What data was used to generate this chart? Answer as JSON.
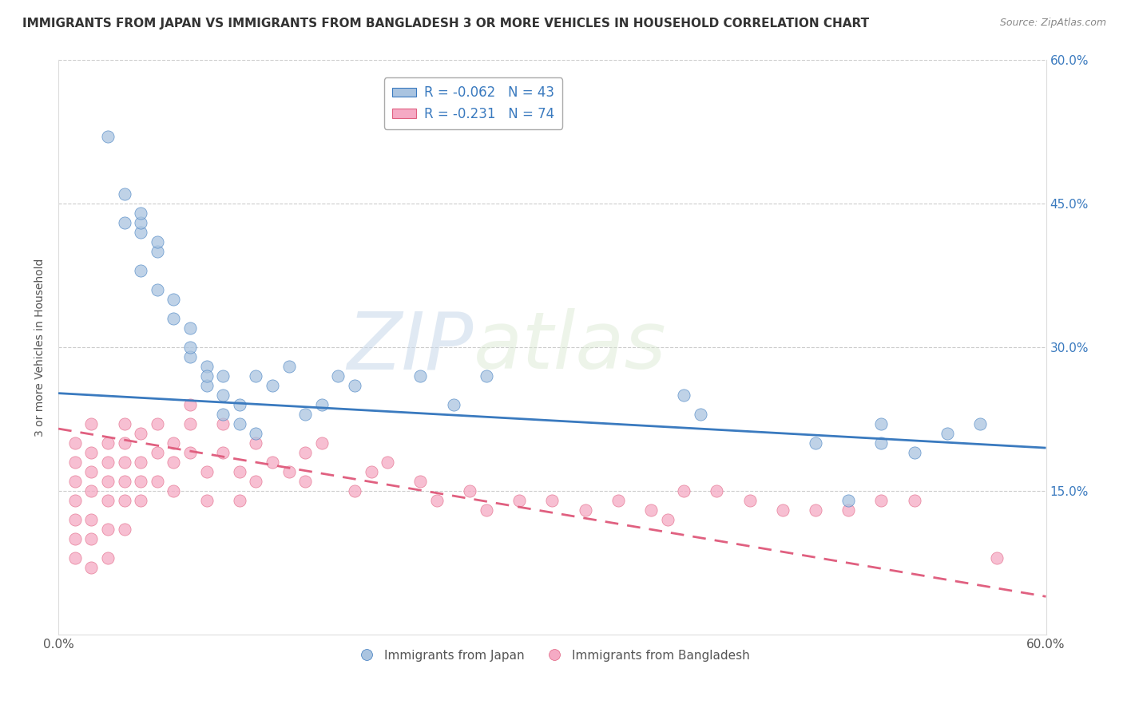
{
  "title": "IMMIGRANTS FROM JAPAN VS IMMIGRANTS FROM BANGLADESH 3 OR MORE VEHICLES IN HOUSEHOLD CORRELATION CHART",
  "source": "Source: ZipAtlas.com",
  "ylabel": "3 or more Vehicles in Household",
  "xlim": [
    0.0,
    0.6
  ],
  "ylim": [
    0.0,
    0.6
  ],
  "legend_japan_R": "R = -0.062",
  "legend_japan_N": "N = 43",
  "legend_bangladesh_R": "R = -0.231",
  "legend_bangladesh_N": "N = 74",
  "japan_color": "#aac4e0",
  "bangladesh_color": "#f5aac4",
  "japan_line_color": "#3a7abf",
  "bangladesh_line_color": "#e06080",
  "watermark_zip": "ZIP",
  "watermark_atlas": "atlas",
  "japan_x": [
    0.03,
    0.04,
    0.04,
    0.05,
    0.05,
    0.05,
    0.05,
    0.06,
    0.06,
    0.06,
    0.07,
    0.07,
    0.08,
    0.08,
    0.08,
    0.09,
    0.09,
    0.09,
    0.1,
    0.1,
    0.1,
    0.11,
    0.11,
    0.12,
    0.12,
    0.13,
    0.14,
    0.15,
    0.16,
    0.17,
    0.18,
    0.22,
    0.24,
    0.26,
    0.38,
    0.39,
    0.46,
    0.48,
    0.5,
    0.5,
    0.52,
    0.54,
    0.56
  ],
  "japan_y": [
    0.52,
    0.43,
    0.46,
    0.38,
    0.42,
    0.43,
    0.44,
    0.36,
    0.4,
    0.41,
    0.33,
    0.35,
    0.29,
    0.3,
    0.32,
    0.26,
    0.28,
    0.27,
    0.23,
    0.25,
    0.27,
    0.22,
    0.24,
    0.21,
    0.27,
    0.26,
    0.28,
    0.23,
    0.24,
    0.27,
    0.26,
    0.27,
    0.24,
    0.27,
    0.25,
    0.23,
    0.2,
    0.14,
    0.22,
    0.2,
    0.19,
    0.21,
    0.22
  ],
  "bangladesh_x": [
    0.01,
    0.01,
    0.01,
    0.01,
    0.01,
    0.01,
    0.01,
    0.02,
    0.02,
    0.02,
    0.02,
    0.02,
    0.02,
    0.02,
    0.03,
    0.03,
    0.03,
    0.03,
    0.03,
    0.03,
    0.04,
    0.04,
    0.04,
    0.04,
    0.04,
    0.04,
    0.05,
    0.05,
    0.05,
    0.05,
    0.06,
    0.06,
    0.06,
    0.07,
    0.07,
    0.07,
    0.08,
    0.08,
    0.08,
    0.09,
    0.09,
    0.1,
    0.1,
    0.11,
    0.11,
    0.12,
    0.12,
    0.13,
    0.14,
    0.15,
    0.15,
    0.16,
    0.18,
    0.19,
    0.2,
    0.22,
    0.23,
    0.25,
    0.26,
    0.28,
    0.3,
    0.32,
    0.34,
    0.36,
    0.37,
    0.38,
    0.4,
    0.42,
    0.44,
    0.46,
    0.48,
    0.5,
    0.52,
    0.57
  ],
  "bangladesh_y": [
    0.2,
    0.18,
    0.16,
    0.14,
    0.12,
    0.1,
    0.08,
    0.22,
    0.19,
    0.17,
    0.15,
    0.12,
    0.1,
    0.07,
    0.2,
    0.18,
    0.16,
    0.14,
    0.11,
    0.08,
    0.22,
    0.2,
    0.18,
    0.16,
    0.14,
    0.11,
    0.21,
    0.18,
    0.16,
    0.14,
    0.22,
    0.19,
    0.16,
    0.2,
    0.18,
    0.15,
    0.19,
    0.22,
    0.24,
    0.17,
    0.14,
    0.22,
    0.19,
    0.17,
    0.14,
    0.2,
    0.16,
    0.18,
    0.17,
    0.16,
    0.19,
    0.2,
    0.15,
    0.17,
    0.18,
    0.16,
    0.14,
    0.15,
    0.13,
    0.14,
    0.14,
    0.13,
    0.14,
    0.13,
    0.12,
    0.15,
    0.15,
    0.14,
    0.13,
    0.13,
    0.13,
    0.14,
    0.14,
    0.08
  ],
  "japan_line_x": [
    0.0,
    0.6
  ],
  "japan_line_y": [
    0.252,
    0.195
  ],
  "bangladesh_line_x": [
    0.0,
    0.6
  ],
  "bangladesh_line_y": [
    0.215,
    0.04
  ]
}
